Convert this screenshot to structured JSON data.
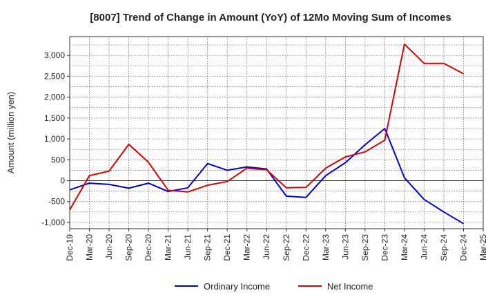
{
  "chart_data": {
    "type": "line",
    "title": "[8007]  Trend of Change in Amount (YoY) of 12Mo Moving Sum of Incomes",
    "ylabel": "Amount (million yen)",
    "xlabel": "",
    "ylim": [
      -1150,
      3450
    ],
    "yticks": [
      -1000,
      -500,
      0,
      500,
      1000,
      1500,
      2000,
      2500,
      3000
    ],
    "ytick_labels": [
      "-1,000",
      "-500",
      "0",
      "500",
      "1,000",
      "1,500",
      "2,000",
      "2,500",
      "3,000"
    ],
    "x": [
      "Dec-19",
      "Mar-20",
      "Jun-20",
      "Sep-20",
      "Dec-20",
      "Mar-21",
      "Jun-21",
      "Sep-21",
      "Dec-21",
      "Mar-22",
      "Jun-22",
      "Sep-22",
      "Dec-22",
      "Mar-23",
      "Jun-23",
      "Sep-23",
      "Dec-23",
      "Mar-24",
      "Jun-24",
      "Sep-24",
      "Dec-24",
      "Mar-25"
    ],
    "grid": true,
    "legend_position": "bottom",
    "series": [
      {
        "name": "Ordinary Income",
        "color": "#0000dd",
        "values": [
          -220,
          -60,
          -90,
          -180,
          -60,
          -260,
          -170,
          410,
          250,
          330,
          280,
          -370,
          -400,
          120,
          430,
          860,
          1250,
          70,
          -450,
          -750,
          -1030,
          null
        ]
      },
      {
        "name": "Net Income",
        "color": "#dd0000",
        "values": [
          -700,
          120,
          230,
          870,
          440,
          -230,
          -270,
          -110,
          -20,
          300,
          260,
          -170,
          -160,
          300,
          570,
          690,
          970,
          3270,
          2810,
          2810,
          2560,
          null
        ]
      }
    ]
  }
}
